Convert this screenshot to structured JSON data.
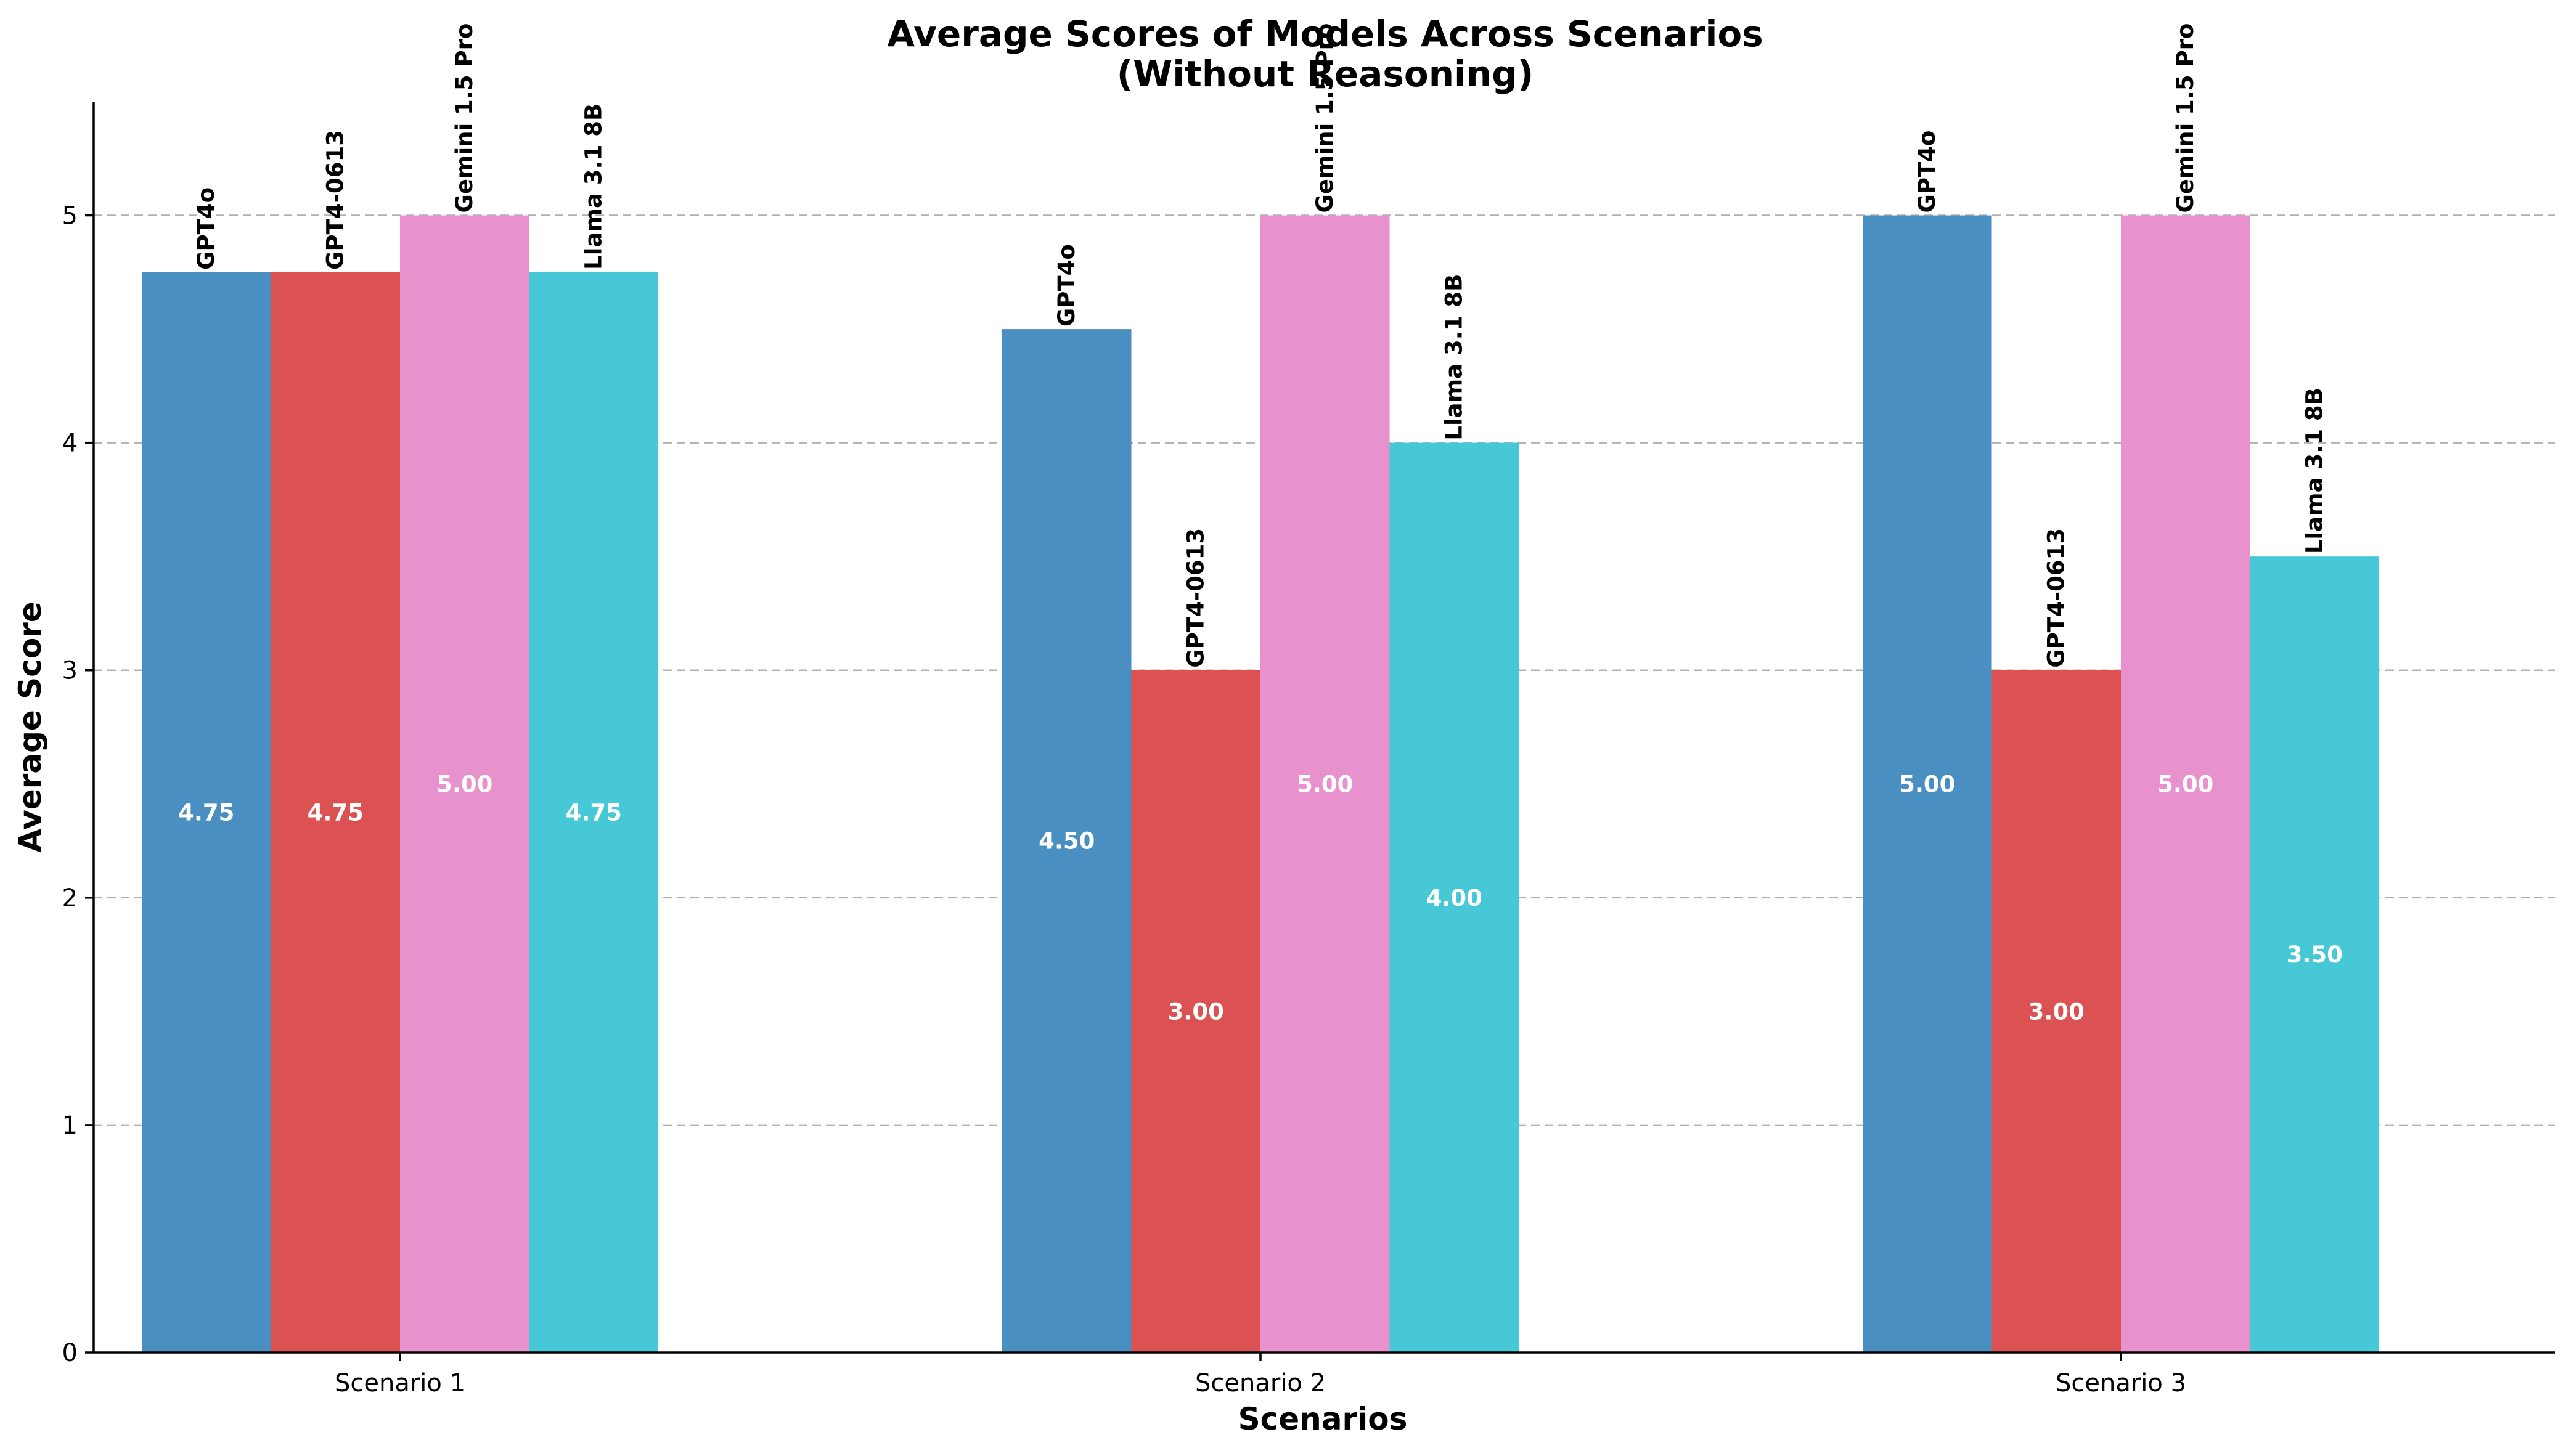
{
  "chart_data": {
    "type": "bar",
    "title": "Average Scores of Models Across Scenarios",
    "subtitle": "(Without Reasoning)",
    "xlabel": "Scenarios",
    "ylabel": "Average Score",
    "categories": [
      "Scenario 1",
      "Scenario 2",
      "Scenario 3"
    ],
    "ylim": [
      0,
      5.5
    ],
    "yticks": [
      0,
      1,
      2,
      3,
      4,
      5
    ],
    "grid": "y-dashed",
    "legend": "none (series names labeled above bars)",
    "series": [
      {
        "name": "GPT4o",
        "color": "#4a8fc1",
        "values": [
          4.75,
          4.5,
          5.0
        ]
      },
      {
        "name": "GPT4-0613",
        "color": "#dc5152",
        "values": [
          4.75,
          3.0,
          3.0
        ]
      },
      {
        "name": "Gemini 1.5 Pro",
        "color": "#e792cd",
        "values": [
          5.0,
          5.0,
          5.0
        ]
      },
      {
        "name": "Llama 3.1 8B",
        "color": "#46c8d6",
        "values": [
          4.75,
          4.0,
          3.5
        ]
      }
    ],
    "value_labels": [
      [
        "4.75",
        "4.50",
        "5.00"
      ],
      [
        "4.75",
        "3.00",
        "3.00"
      ],
      [
        "5.00",
        "5.00",
        "5.00"
      ],
      [
        "4.75",
        "4.00",
        "3.50"
      ]
    ]
  }
}
